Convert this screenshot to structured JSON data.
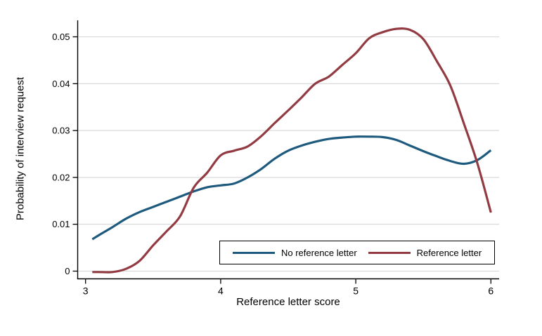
{
  "chart_data": {
    "type": "line",
    "title": "",
    "xlabel": "Reference letter score",
    "ylabel": "Probability of interview request",
    "xlim": [
      3,
      6
    ],
    "ylim": [
      0,
      0.05
    ],
    "x_ticks": [
      "3",
      "4",
      "5",
      "6"
    ],
    "y_ticks": [
      "0",
      "0.01",
      "0.02",
      "0.03",
      "0.04",
      "0.05"
    ],
    "grid": "horizontal",
    "legend_position": "inside-bottom-right",
    "axis_color": "#000000",
    "grid_color": "#d6d6d6",
    "background_color": "#ffffff",
    "series": [
      {
        "name": "No reference letter",
        "color": "#1e5a7d",
        "x": [
          3.05,
          3.1,
          3.2,
          3.3,
          3.4,
          3.5,
          3.6,
          3.7,
          3.8,
          3.9,
          4.0,
          4.1,
          4.2,
          4.3,
          4.4,
          4.5,
          4.6,
          4.7,
          4.8,
          4.9,
          5.0,
          5.1,
          5.2,
          5.3,
          5.4,
          5.5,
          5.6,
          5.7,
          5.8,
          5.9,
          6.0
        ],
        "y": [
          0.0068,
          0.0077,
          0.0094,
          0.0112,
          0.0126,
          0.0137,
          0.0148,
          0.0159,
          0.017,
          0.0179,
          0.0183,
          0.0187,
          0.02,
          0.0218,
          0.024,
          0.0257,
          0.0268,
          0.0276,
          0.0282,
          0.0285,
          0.0287,
          0.0287,
          0.0286,
          0.028,
          0.0268,
          0.0256,
          0.0245,
          0.0235,
          0.0229,
          0.0237,
          0.0258
        ]
      },
      {
        "name": "Reference letter",
        "color": "#923b43",
        "x": [
          3.05,
          3.1,
          3.2,
          3.3,
          3.4,
          3.5,
          3.6,
          3.7,
          3.8,
          3.9,
          4.0,
          4.1,
          4.2,
          4.3,
          4.4,
          4.5,
          4.6,
          4.7,
          4.8,
          4.9,
          5.0,
          5.1,
          5.2,
          5.3,
          5.4,
          5.5,
          5.6,
          5.7,
          5.8,
          5.9,
          6.0
        ],
        "y": [
          -0.0002,
          -0.0002,
          -0.0002,
          0.0005,
          0.0022,
          0.0055,
          0.0085,
          0.0117,
          0.0178,
          0.021,
          0.0247,
          0.0257,
          0.0266,
          0.0288,
          0.0316,
          0.0343,
          0.0371,
          0.04,
          0.0415,
          0.044,
          0.0465,
          0.0497,
          0.051,
          0.0517,
          0.0515,
          0.0495,
          0.0448,
          0.0396,
          0.0315,
          0.023,
          0.0125
        ]
      }
    ]
  }
}
